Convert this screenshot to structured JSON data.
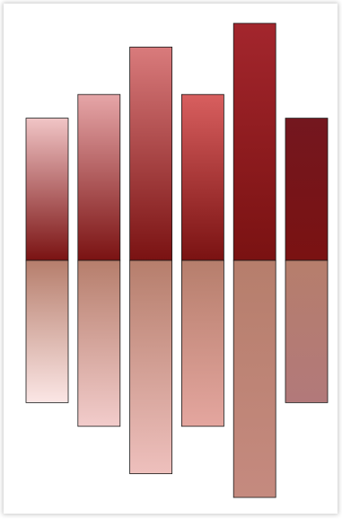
{
  "chart_data": {
    "type": "bar",
    "orientation": "vertical",
    "baseline": "center",
    "title": "",
    "xlabel": "",
    "ylabel": "",
    "categories": [
      "",
      "",
      "",
      "",
      "",
      ""
    ],
    "ylim": [
      -5,
      5
    ],
    "series": [
      {
        "values": [
          3.0,
          3.5,
          4.5,
          3.5,
          5.0,
          3.0
        ]
      },
      {
        "values": [
          -3.0,
          -3.5,
          -4.5,
          -3.5,
          -5.0,
          -3.0
        ]
      }
    ],
    "grid": false,
    "legend": "none",
    "colors": {
      "upper_bars": [
        {
          "top": "#f1c5c6",
          "bottom": "#7a1212"
        },
        {
          "top": "#e6a6a8",
          "bottom": "#7a1212"
        },
        {
          "top": "#d97b7c",
          "bottom": "#7a1212"
        },
        {
          "top": "#d85f5f",
          "bottom": "#7a1212"
        },
        {
          "top": "#a3262d",
          "bottom": "#7a1212"
        },
        {
          "top": "#74171f",
          "bottom": "#7a1212"
        }
      ],
      "lower_bars": [
        {
          "top": "#b67e6c",
          "bottom": "#fbe6e5"
        },
        {
          "top": "#b67e6c",
          "bottom": "#f2cccb"
        },
        {
          "top": "#b67e6c",
          "bottom": "#eec0bd"
        },
        {
          "top": "#b67e6c",
          "bottom": "#e4a69f"
        },
        {
          "top": "#b67e6c",
          "bottom": "#c58a7f"
        },
        {
          "top": "#b67e6c",
          "bottom": "#b2797a"
        }
      ],
      "outline": "#1a1a1a"
    }
  }
}
